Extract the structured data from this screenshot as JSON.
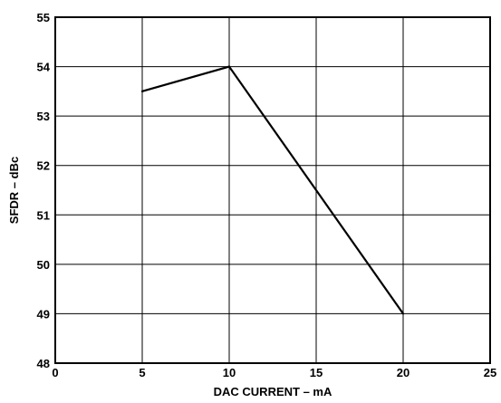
{
  "chart_data": {
    "type": "line",
    "title": "",
    "xlabel": "DAC CURRENT – mA",
    "ylabel": "SFDR – dBc",
    "xlim": [
      0,
      25
    ],
    "ylim": [
      48,
      55
    ],
    "x_ticks": [
      0,
      5,
      10,
      15,
      20,
      25
    ],
    "y_ticks": [
      48,
      49,
      50,
      51,
      52,
      53,
      54,
      55
    ],
    "x_tick_labels": [
      "0",
      "5",
      "10",
      "15",
      "20",
      "25"
    ],
    "y_tick_labels": [
      "48",
      "49",
      "50",
      "51",
      "52",
      "53",
      "54",
      "55"
    ],
    "grid": true,
    "series": [
      {
        "x": [
          5,
          10,
          20
        ],
        "values": [
          53.5,
          54.0,
          49.0
        ],
        "color": "#000000"
      }
    ]
  }
}
